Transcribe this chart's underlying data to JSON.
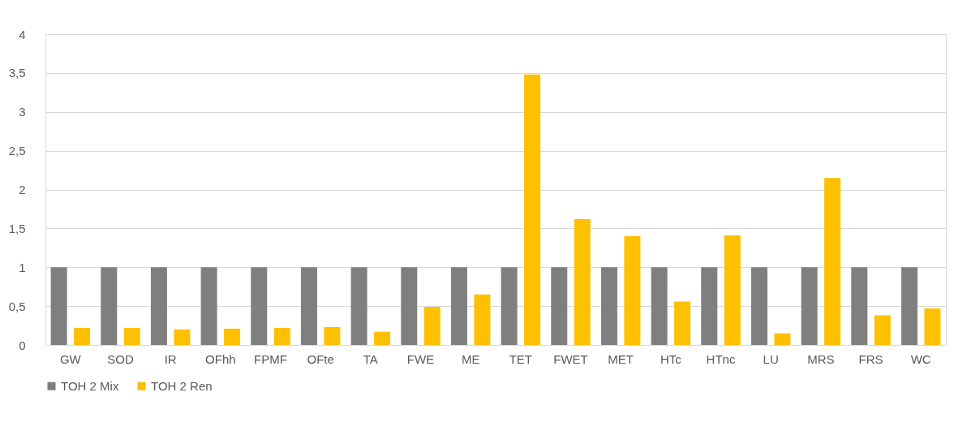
{
  "chart_data": {
    "type": "bar",
    "categories": [
      "GW",
      "SOD",
      "IR",
      "OFhh",
      "FPMF",
      "OFte",
      "TA",
      "FWE",
      "ME",
      "TET",
      "FWET",
      "MET",
      "HTc",
      "HTnc",
      "LU",
      "MRS",
      "FRS",
      "WC"
    ],
    "series": [
      {
        "name": "TOH 2 Mix",
        "color": "#7f7f7f",
        "values": [
          1,
          1,
          1,
          1,
          1,
          1,
          1,
          1,
          1,
          1,
          1,
          1,
          1,
          1,
          1,
          1,
          1,
          1
        ]
      },
      {
        "name": "TOH 2 Ren",
        "color": "#ffc000",
        "values": [
          0.22,
          0.22,
          0.2,
          0.21,
          0.22,
          0.23,
          0.17,
          0.49,
          0.65,
          3.48,
          1.62,
          1.4,
          0.56,
          1.41,
          0.15,
          2.15,
          0.38,
          0.47
        ]
      }
    ],
    "ylim": [
      0,
      4
    ],
    "yticks": [
      0,
      {
        "value": 0.5,
        "label": "0,5"
      },
      1,
      {
        "value": 1.5,
        "label": "1,5"
      },
      2,
      {
        "value": 2.5,
        "label": "2,5"
      },
      3,
      {
        "value": 3.5,
        "label": "3,5"
      },
      4
    ],
    "grid": "y",
    "legend": "bottom"
  }
}
